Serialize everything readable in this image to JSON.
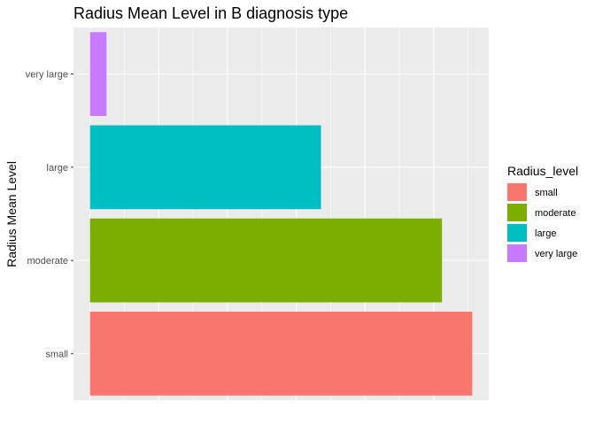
{
  "chart_data": {
    "type": "bar",
    "orientation": "horizontal",
    "title": "Radius Mean Level in B diagnosis type",
    "xlabel": "",
    "ylabel": "Radius Mean Level",
    "categories": [
      "small",
      "moderate",
      "large",
      "very large"
    ],
    "values": [
      278,
      256,
      168,
      12
    ],
    "colors": [
      "#F8766D",
      "#7CAE00",
      "#00BFC4",
      "#C77CFF"
    ],
    "xlim": [
      -12,
      290
    ],
    "grid": true,
    "legend": {
      "title": "Radius_level",
      "position": "right",
      "entries": [
        "small",
        "moderate",
        "large",
        "very large"
      ]
    }
  }
}
